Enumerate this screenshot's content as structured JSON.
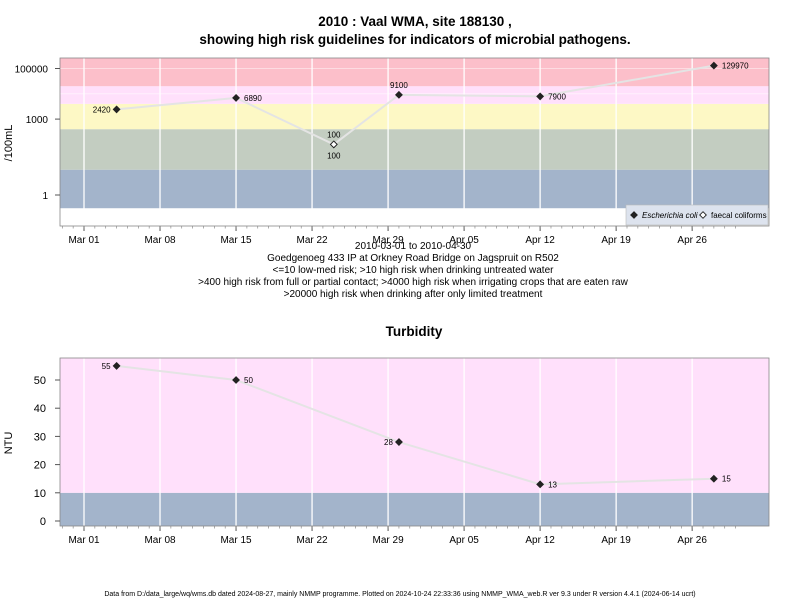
{
  "chart_data": [
    {
      "type": "scatter",
      "title_line1": "2010 : Vaal WMA, site 188130 ,",
      "title_line2": "showing high risk guidelines for indicators of microbial pathogens.",
      "ylabel": "/100mL",
      "y_scale": "log",
      "y_tick_labels": [
        "100000",
        "1000",
        "1"
      ],
      "x_tick_labels": [
        "Mar 01",
        "Mar 08",
        "Mar 15",
        "Mar 22",
        "Mar 29",
        "Apr 05",
        "Apr 12",
        "Apr 19",
        "Apr 26"
      ],
      "date_range": "2010-03-01 to 2010-04-30",
      "site_description": "Goedgenoeg 433 IP at Orkney Road Bridge on Jagspruit on R502",
      "guidelines": [
        "<=10 low-med risk; >10 high risk when drinking untreated water",
        ">400 high risk from full or partial contact; >4000 high risk when irrigating crops that are eaten raw",
        ">20000 high risk when drinking after only limited treatment"
      ],
      "bands": [
        {
          "from": 0.3,
          "to": 10,
          "color": "#a3b4cb"
        },
        {
          "from": 10,
          "to": 400,
          "color": "#c3cdc1"
        },
        {
          "from": 400,
          "to": 4000,
          "color": "#fdf8c5"
        },
        {
          "from": 4000,
          "to": 20000,
          "color": "#ffe0fb"
        },
        {
          "from": 20000,
          "to": 400000,
          "color": "#fcbfca"
        }
      ],
      "series": [
        {
          "name": "Escherichia coli",
          "marker": "filled-diamond",
          "points": [
            {
              "x": "2010-03-04",
              "y": 2420,
              "label": "2420"
            },
            {
              "x": "2010-03-15",
              "y": 6890,
              "label": "6890"
            },
            {
              "x": "2010-03-24",
              "y": 100,
              "label": "100"
            },
            {
              "x": "2010-03-30",
              "y": 9100,
              "label": "9100"
            },
            {
              "x": "2010-04-12",
              "y": 7900,
              "label": "7900"
            },
            {
              "x": "2010-04-28",
              "y": 129970,
              "label": "129970"
            }
          ]
        },
        {
          "name": "faecal coliforms",
          "marker": "open-diamond",
          "points": [
            {
              "x": "2010-03-24",
              "y": 100,
              "label": "100"
            }
          ]
        }
      ],
      "legend": {
        "position": "bottom-right",
        "items": [
          "Escherichia coli",
          "faecal coliforms"
        ]
      }
    },
    {
      "type": "scatter",
      "title": "Turbidity",
      "ylabel": "NTU",
      "ylim": [
        -2,
        58
      ],
      "y_ticks": [
        0,
        10,
        20,
        30,
        40,
        50
      ],
      "x_tick_labels": [
        "Mar 01",
        "Mar 08",
        "Mar 15",
        "Mar 22",
        "Mar 29",
        "Apr 05",
        "Apr 12",
        "Apr 19",
        "Apr 26"
      ],
      "bands": [
        {
          "from": -2,
          "to": 10,
          "color": "#a3b4cb"
        },
        {
          "from": 10,
          "to": 58,
          "color": "#ffe0fb"
        }
      ],
      "series": [
        {
          "name": "Turbidity",
          "marker": "filled-diamond",
          "points": [
            {
              "x": "2010-03-04",
              "y": 55,
              "label": "55"
            },
            {
              "x": "2010-03-15",
              "y": 50,
              "label": "50"
            },
            {
              "x": "2010-03-30",
              "y": 28,
              "label": "28"
            },
            {
              "x": "2010-04-12",
              "y": 13,
              "label": "13"
            },
            {
              "x": "2010-04-28",
              "y": 15,
              "label": "15"
            }
          ]
        }
      ]
    }
  ],
  "footer": "Data from D:/data_large/wq/wms.db dated 2024-08-27, mainly NMMP programme. Plotted on 2024-10-24 22:33:36 using NMMP_WMA_web.R ver 9.3 under R version 4.4.1 (2024-06-14 ucrt)"
}
